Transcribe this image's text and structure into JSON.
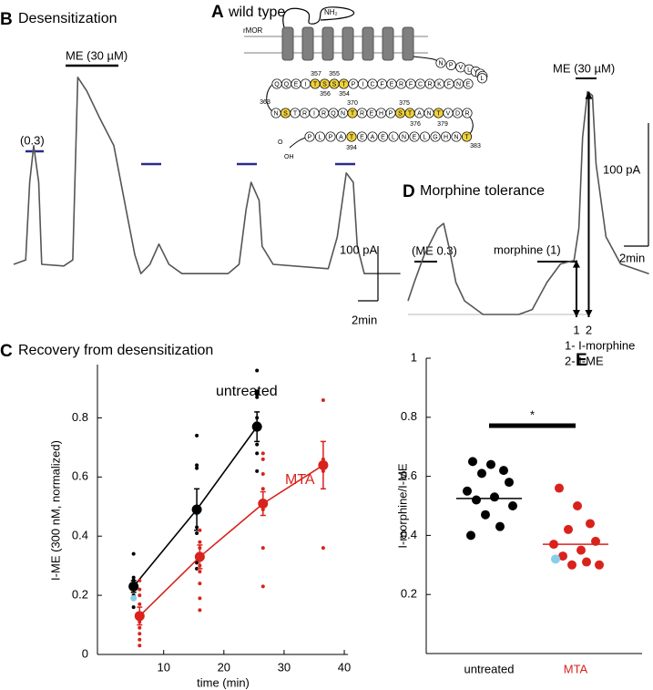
{
  "panel_a": {
    "label": "A",
    "title": "wild type",
    "n_terminus": "NH₂",
    "receptor": "rMOR",
    "highlight_color": "#f0d23c",
    "c_tail": [
      {
        "letters": [
          "N",
          "P",
          "V",
          "L",
          "Y",
          "A",
          "F",
          "L"
        ],
        "highlighted": []
      },
      {
        "letters": [
          "Q",
          "Q",
          "E",
          "I",
          "T",
          "S",
          "S",
          "T",
          "P",
          "I",
          "C",
          "F",
          "E",
          "R",
          "F",
          "C",
          "R",
          "K",
          "F",
          "N",
          "E"
        ],
        "highlighted": [
          4,
          5,
          6,
          7
        ]
      },
      {
        "letters": [
          "N",
          "S",
          "T",
          "R",
          "I",
          "R",
          "Q",
          "N",
          "T",
          "R",
          "E",
          "H",
          "P",
          "S",
          "T",
          "A",
          "N",
          "T",
          "V",
          "D",
          "R"
        ],
        "highlighted": [
          1,
          8,
          13,
          14,
          17
        ]
      },
      {
        "letters": [
          "P",
          "L",
          "P",
          "A",
          "T",
          "E",
          "A",
          "E",
          "L",
          "N",
          "E",
          "L",
          "G",
          "H",
          "N",
          "T"
        ],
        "highlighted": [
          4,
          15
        ]
      }
    ],
    "residue_numbers": [
      "357",
      "355",
      "356",
      "354",
      "375",
      "363",
      "370",
      "376",
      "379",
      "394",
      "383"
    ],
    "c_terminus": [
      "O",
      "OH"
    ]
  },
  "chart_data": [
    {
      "type": "trace",
      "label": "B",
      "title": "Desensitization",
      "color": "#555555",
      "time": [
        0,
        1.2,
        1.6,
        2.0,
        2.5,
        2.8,
        5.0,
        5.9,
        6.4,
        7.3,
        8.6,
        10.0,
        11.4,
        12.1,
        12.7,
        13.6,
        14.5,
        15.5,
        16.8,
        21.4,
        22.5,
        23.2,
        23.7,
        24.5,
        24.8,
        25.9,
        31.4,
        32.3,
        33.2,
        33.9,
        34.3,
        35.0,
        38.6
      ],
      "current": [
        0,
        8,
        150,
        217,
        150,
        0,
        -3,
        8,
        342,
        317,
        267,
        217,
        83,
        17,
        -17,
        0,
        37,
        0,
        -17,
        -17,
        0,
        100,
        150,
        117,
        33,
        0,
        -8,
        50,
        167,
        150,
        33,
        -17,
        -17
      ],
      "annotations": [
        "(0.3)",
        "ME (30 µM)"
      ],
      "scale_bar": {
        "current": {
          "value": 100,
          "label": "100 pA"
        },
        "time": {
          "value": 2,
          "label": "2min"
        }
      }
    },
    {
      "type": "line",
      "label": "C",
      "title": "Recovery from desensitization",
      "x_label": "time (min)",
      "y_label": "I-ME (300 nM, normalized)",
      "xlim": [
        -1,
        40.6
      ],
      "ylim": [
        0,
        0.98
      ],
      "xticks": [
        10,
        20,
        30,
        40
      ],
      "yticks": [
        0,
        0.2,
        0.4,
        0.6,
        0.8
      ],
      "series": [
        {
          "name": "untreated",
          "color": "#000000",
          "x": [
            5,
            15.5,
            25.5
          ],
          "values": [
            0.23,
            0.49,
            0.77
          ],
          "errors": [
            0.02,
            0.07,
            0.05
          ],
          "points": {
            "x": [
              5,
              5,
              5,
              5,
              5,
              5,
              5,
              15.5,
              15.5,
              15.5,
              15.5,
              15.5,
              15.5,
              15.5,
              25.5,
              25.5,
              25.5,
              25.5,
              25.5,
              25.5,
              25.5,
              25.5
            ],
            "values": [
              0.34,
              0.26,
              0.25,
              0.23,
              0.22,
              0.2,
              0.16,
              0.74,
              0.64,
              0.63,
              0.43,
              0.41,
              0.31,
              0.29,
              0.96,
              0.89,
              0.88,
              0.87,
              0.8,
              0.71,
              0.68,
              0.62
            ]
          },
          "highlight": {
            "color": "#87ceeb",
            "x": [
              5,
              15.5,
              25.5
            ],
            "values": [
              0.19,
              0.48,
              0.78
            ]
          }
        },
        {
          "name": "MTA",
          "color": "#d9221c",
          "x": [
            6,
            16,
            26.5,
            36.5
          ],
          "values": [
            0.13,
            0.33,
            0.51,
            0.64
          ],
          "errors": [
            0.03,
            0.04,
            0.04,
            0.08
          ],
          "points": {
            "x": [
              6,
              6,
              6,
              6,
              6,
              6,
              6,
              6,
              6,
              6,
              16,
              16,
              16,
              16,
              16,
              16,
              16,
              16,
              26.5,
              26.5,
              26.5,
              26.5,
              26.5,
              26.5,
              26.5,
              26.5,
              36.5,
              36.5,
              36.5,
              36.5
            ],
            "values": [
              0.25,
              0.22,
              0.2,
              0.17,
              0.14,
              0.11,
              0.09,
              0.07,
              0.05,
              0.03,
              0.42,
              0.38,
              0.36,
              0.3,
              0.28,
              0.24,
              0.19,
              0.15,
              0.68,
              0.66,
              0.61,
              0.56,
              0.52,
              0.49,
              0.36,
              0.23,
              0.86,
              0.66,
              0.62,
              0.36
            ]
          }
        }
      ]
    },
    {
      "type": "trace",
      "label": "D",
      "title": "Morphine tolerance",
      "color": "#555555",
      "time": [
        0,
        0.5,
        1.3,
        2.4,
        2.9,
        3.3,
        3.9,
        4.6,
        6.1,
        9.0,
        10.1,
        11.3,
        12.4,
        13.5,
        13.9,
        14.2,
        14.6,
        15.0,
        15.3,
        16.1,
        17.3,
        19.6
      ],
      "current": [
        11,
        26,
        48,
        70,
        74,
        56,
        26,
        11,
        0,
        0,
        4,
        26,
        41,
        44,
        70,
        144,
        181,
        178,
        122,
        63,
        41,
        33
      ],
      "annotations": [
        "(ME 0.3)",
        "morphine (1)",
        "ME (30 µM)"
      ],
      "scale_bar": {
        "current": {
          "value": 100,
          "label": "100 pA"
        },
        "time": {
          "value": 2,
          "label": "2min"
        }
      },
      "arrows": [
        {
          "label": "1",
          "time": 13.7,
          "current": 44
        },
        {
          "label": "2",
          "time": 14.7,
          "current": 181
        }
      ],
      "notes": [
        "1- I-morphine",
        "2- I-ME"
      ]
    },
    {
      "type": "dot",
      "label": "E",
      "y_label": "I-morphine/I-ME",
      "categories": [
        "untreated",
        "MTA"
      ],
      "ylim": [
        0,
        1
      ],
      "yticks": [
        0.2,
        0.4,
        0.6,
        0.8,
        1
      ],
      "groups": [
        {
          "color": "#000000",
          "values": [
            0.65,
            0.64,
            0.62,
            0.61,
            0.58,
            0.55,
            0.53,
            0.52,
            0.5,
            0.47,
            0.43,
            0.4
          ],
          "mean": 0.525
        },
        {
          "color": "#d9221c",
          "values": [
            0.56,
            0.5,
            0.44,
            0.42,
            0.38,
            0.37,
            0.35,
            0.33,
            0.3,
            0.3,
            0.31
          ],
          "mean": 0.37,
          "highlight": {
            "color": "#87ceeb",
            "values": [
              0.32
            ]
          }
        }
      ],
      "significance": "*"
    }
  ]
}
